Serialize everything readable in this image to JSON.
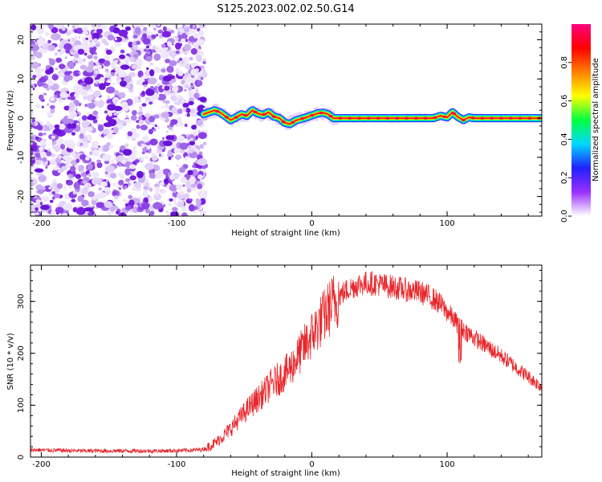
{
  "title": "S125.2023.002.02.50.G14",
  "colors": {
    "snr_line": "#e8262b",
    "noise": "#8a2be2",
    "axis": "#000000"
  },
  "chart_data": [
    {
      "type": "heatmap",
      "title": "S125.2023.002.02.50.G14",
      "xlabel": "Height of straight line (km)",
      "ylabel": "Frequency (Hz)",
      "xlim": [
        -208,
        170
      ],
      "ylim": [
        -25,
        24
      ],
      "xticks": [
        -200,
        -100,
        0,
        100
      ],
      "xtick_labels": [
        "-200",
        "-100",
        "0",
        "100"
      ],
      "yticks": [
        -20,
        -10,
        0,
        10,
        20
      ],
      "ytick_labels": [
        "-20",
        "-10",
        "0",
        "10",
        "20"
      ],
      "noise_region_x": [
        -208,
        -79
      ],
      "tone_curve": {
        "x": [
          -80,
          -76,
          -72,
          -68,
          -64,
          -60,
          -56,
          -52,
          -48,
          -44,
          -40,
          -36,
          -32,
          -28,
          -24,
          -20,
          -16,
          -12,
          -8,
          -4,
          0,
          4,
          8,
          12,
          16,
          20,
          30,
          40,
          50,
          60,
          70,
          80,
          90,
          95,
          100,
          104,
          108,
          112,
          116,
          120,
          130,
          140,
          150,
          160,
          170
        ],
        "freq": [
          1.0,
          1.5,
          2.0,
          1.5,
          0.5,
          -0.5,
          0.2,
          1.0,
          0.6,
          2.0,
          1.2,
          0.8,
          1.5,
          0.4,
          0,
          -1.2,
          -1.5,
          -0.6,
          -0.2,
          0.2,
          0.7,
          1.2,
          1.4,
          1.0,
          0,
          0,
          0,
          0,
          0,
          0,
          0,
          0,
          0,
          0.6,
          0.2,
          1.5,
          0.3,
          -0.5,
          0.2,
          0,
          0,
          0,
          0,
          0,
          0
        ]
      },
      "colorbar": {
        "label": "Normalized spectral amplitude",
        "ticks": [
          0.0,
          0.2,
          0.4,
          0.6,
          0.8
        ],
        "tick_labels": [
          "0.0",
          "0.2",
          "0.4",
          "0.6",
          "0.8"
        ],
        "range": [
          0,
          1
        ],
        "colors": [
          "#ffffff",
          "#9b30ff",
          "#2020ff",
          "#00d8ff",
          "#00ff40",
          "#ffff00",
          "#ff8000",
          "#ff0000",
          "#ff0080"
        ]
      }
    },
    {
      "type": "line",
      "title": "",
      "xlabel": "Height of straight line (km)",
      "ylabel": "SNR (10 * v/v)",
      "xlim": [
        -208,
        170
      ],
      "ylim": [
        0,
        370
      ],
      "xticks": [
        -200,
        -100,
        0,
        100
      ],
      "xtick_labels": [
        "-200",
        "-100",
        "0",
        "100"
      ],
      "yticks": [
        0,
        100,
        200,
        300
      ],
      "ytick_labels": [
        "0",
        "100",
        "200",
        "300"
      ],
      "series": [
        {
          "x": [
            -208,
            -190,
            -170,
            -150,
            -130,
            -110,
            -90,
            -80,
            -75,
            -70,
            -65,
            -60,
            -55,
            -50,
            -45,
            -40,
            -35,
            -30,
            -25,
            -20,
            -15,
            -10,
            -5,
            0,
            5,
            10,
            15,
            20,
            25,
            30,
            35,
            40,
            45,
            50,
            55,
            60,
            65,
            70,
            75,
            80,
            85,
            90,
            95,
            100,
            105,
            110,
            115,
            120,
            130,
            140,
            150,
            160,
            170
          ],
          "y": [
            14,
            13,
            12,
            12,
            12,
            12,
            13,
            15,
            22,
            30,
            42,
            55,
            70,
            85,
            100,
            112,
            125,
            140,
            150,
            160,
            175,
            195,
            215,
            235,
            255,
            275,
            295,
            310,
            320,
            328,
            333,
            335,
            335,
            333,
            330,
            328,
            325,
            322,
            320,
            318,
            312,
            305,
            295,
            280,
            265,
            250,
            240,
            230,
            212,
            195,
            175,
            155,
            135
          ]
        }
      ]
    }
  ]
}
